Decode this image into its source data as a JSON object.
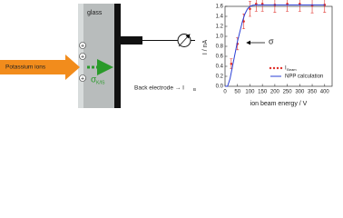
{
  "diagram": {
    "glass": "glass",
    "ions": "Potassium ions",
    "plus": "+",
    "sigma": "σ",
    "sigma_sub": "K/IS",
    "electrode": "Back electrode → I",
    "electrode_sub": "B"
  },
  "chart_data": {
    "type": "line",
    "xlabel": "ion beam energy / V",
    "ylabel": "I / nA",
    "xlim": [
      0,
      430
    ],
    "ylim": [
      0,
      1.6
    ],
    "xticks": [
      0,
      50,
      100,
      150,
      200,
      250,
      300,
      350,
      400
    ],
    "yticks": [
      {
        "value": 0,
        "label": "0.0"
      },
      0.2,
      0.4,
      0.6,
      0.8,
      {
        "value": 1,
        "label": "1.0"
      },
      1.2,
      1.4,
      1.6
    ],
    "legend": "lower right",
    "annotation": "σ",
    "series": [
      {
        "name": "I",
        "name_sub": "Beam",
        "color": "#e0302a",
        "style": "points",
        "x": [
          25,
          50,
          75,
          100,
          125,
          150,
          200,
          250,
          300,
          350,
          400
        ],
        "values": [
          0.45,
          0.85,
          1.3,
          1.55,
          1.65,
          1.65,
          1.63,
          1.65,
          1.65,
          1.62,
          1.63
        ],
        "errors": [
          0.1,
          0.12,
          0.15,
          0.15,
          0.15,
          0.15,
          0.15,
          0.15,
          0.15,
          0.15,
          0.15
        ]
      },
      {
        "name": "NPP calculation",
        "color": "#2a3fd6",
        "style": "line",
        "x": [
          0,
          10,
          20,
          30,
          40,
          50,
          60,
          70,
          80,
          90,
          100,
          110,
          125,
          150,
          200,
          250,
          300,
          350,
          400
        ],
        "values": [
          0,
          0,
          0.15,
          0.4,
          0.65,
          0.9,
          1.1,
          1.3,
          1.45,
          1.55,
          1.6,
          1.62,
          1.63,
          1.63,
          1.63,
          1.63,
          1.63,
          1.63,
          1.63
        ]
      }
    ]
  }
}
